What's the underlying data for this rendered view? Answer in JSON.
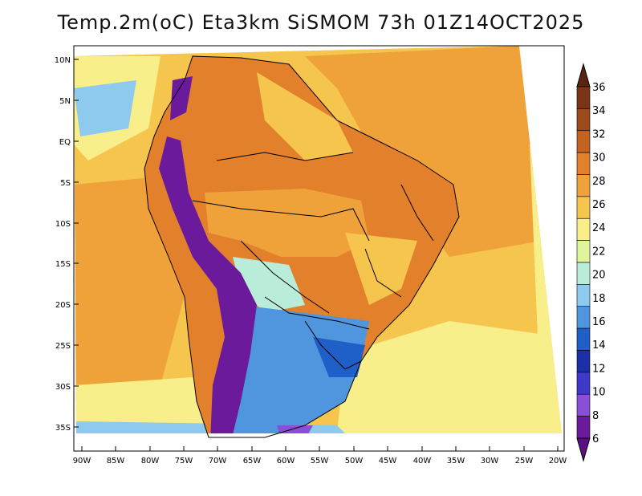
{
  "title": "Temp.2m(oC) Eta3km SiSMOM 73h 01Z14OCT2025",
  "lat_labels": [
    "10N",
    "5N",
    "EQ",
    "5S",
    "10S",
    "15S",
    "20S",
    "25S",
    "30S",
    "35S"
  ],
  "lon_labels": [
    "90W",
    "85W",
    "80W",
    "75W",
    "70W",
    "65W",
    "60W",
    "55W",
    "50W",
    "45W",
    "40W",
    "35W",
    "30W",
    "25W",
    "20W"
  ],
  "colorbar": {
    "labels": [
      "36",
      "34",
      "32",
      "30",
      "28",
      "26",
      "24",
      "22",
      "20",
      "18",
      "16",
      "14",
      "12",
      "10",
      "8",
      "6"
    ],
    "colors": [
      "#7a3514",
      "#9c4a1a",
      "#c4621f",
      "#e2802c",
      "#f0a23a",
      "#f6c54d",
      "#f8ee8a",
      "#dff59c",
      "#b9ecd9",
      "#8ec9ee",
      "#4f96de",
      "#1f5fc8",
      "#1a2fa8",
      "#3d3acb",
      "#8a4fd8",
      "#6a1a9a"
    ],
    "top_arrow_color": "#5a2410",
    "bottom_arrow_color": "#5a1080"
  },
  "colors": {
    "ocean_warm": "#f0a23a",
    "ocean_mild": "#f6c54d",
    "ocean_cool": "#f8ee8a",
    "land_hot": "#e2802c",
    "andes": "#6a1a9a",
    "south_cool": "#4f96de"
  }
}
